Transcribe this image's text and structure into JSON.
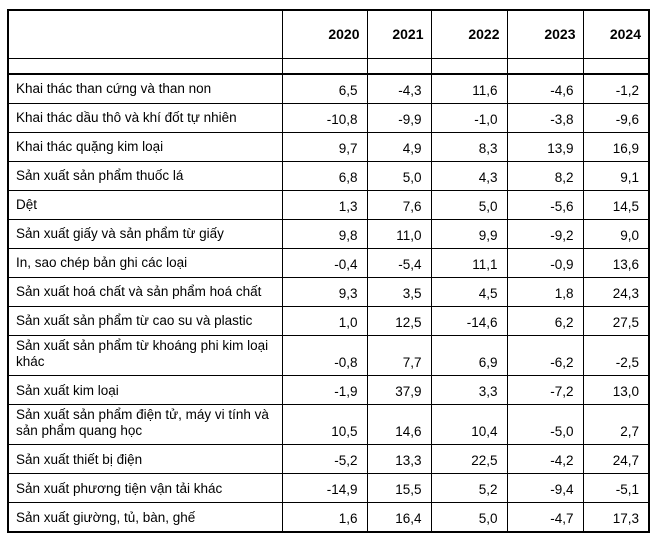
{
  "table": {
    "columns": [
      "2020",
      "2021",
      "2022",
      "2023",
      "2024"
    ],
    "rows": [
      {
        "label": "Khai thác than cứng và than non",
        "values": [
          "6,5",
          "-4,3",
          "11,6",
          "-4,6",
          "-1,2"
        ]
      },
      {
        "label": "Khai thác dầu thô và khí đốt tự nhiên",
        "values": [
          "-10,8",
          "-9,9",
          "-1,0",
          "-3,8",
          "-9,6"
        ]
      },
      {
        "label": "Khai thác quặng kim loại",
        "values": [
          "9,7",
          "4,9",
          "8,3",
          "13,9",
          "16,9"
        ]
      },
      {
        "label": "Sản xuất sản phẩm thuốc lá",
        "values": [
          "6,8",
          "5,0",
          "4,3",
          "8,2",
          "9,1"
        ]
      },
      {
        "label": "Dệt",
        "values": [
          "1,3",
          "7,6",
          "5,0",
          "-5,6",
          "14,5"
        ]
      },
      {
        "label": "Sản xuất giấy và sản phẩm từ giấy",
        "values": [
          "9,8",
          "11,0",
          "9,9",
          "-9,2",
          "9,0"
        ]
      },
      {
        "label": "In, sao chép bản ghi các loại",
        "values": [
          "-0,4",
          "-5,4",
          "11,1",
          "-0,9",
          "13,6"
        ]
      },
      {
        "label": "Sản xuất hoá chất và sản phẩm hoá chất",
        "values": [
          "9,3",
          "3,5",
          "4,5",
          "1,8",
          "24,3"
        ]
      },
      {
        "label": "Sản xuất sản phẩm từ cao su và plastic",
        "values": [
          "1,0",
          "12,5",
          "-14,6",
          "6,2",
          "27,5"
        ]
      },
      {
        "label": "Sản xuất sản phẩm từ khoáng phi kim loại khác",
        "values": [
          "-0,8",
          "7,7",
          "6,9",
          "-6,2",
          "-2,5"
        ]
      },
      {
        "label": "Sản xuất kim loại",
        "values": [
          "-1,9",
          "37,9",
          "3,3",
          "-7,2",
          "13,0"
        ]
      },
      {
        "label": "Sản xuất sản phẩm điện tử, máy vi tính và sản phẩm quang học",
        "values": [
          "10,5",
          "14,6",
          "10,4",
          "-5,0",
          "2,7"
        ]
      },
      {
        "label": "Sản xuất thiết bị điện",
        "values": [
          "-5,2",
          "13,3",
          "22,5",
          "-4,2",
          "24,7"
        ]
      },
      {
        "label": "Sản xuất phương tiện vận tải khác",
        "values": [
          "-14,9",
          "15,5",
          "5,2",
          "-9,4",
          "-5,1"
        ]
      },
      {
        "label": "Sản xuất giường, tủ, bàn, ghế",
        "values": [
          "1,6",
          "16,4",
          "5,0",
          "-4,7",
          "17,3"
        ]
      }
    ]
  },
  "chart_data": {
    "type": "table",
    "categories": [
      "Khai thác than cứng và than non",
      "Khai thác dầu thô và khí đốt tự nhiên",
      "Khai thác quặng kim loại",
      "Sản xuất sản phẩm thuốc lá",
      "Dệt",
      "Sản xuất giấy và sản phẩm từ giấy",
      "In, sao chép bản ghi các loại",
      "Sản xuất hoá chất và sản phẩm hoá chất",
      "Sản xuất sản phẩm từ cao su và plastic",
      "Sản xuất sản phẩm từ khoáng phi kim loại khác",
      "Sản xuất kim loại",
      "Sản xuất sản phẩm điện tử, máy vi tính và sản phẩm quang học",
      "Sản xuất thiết bị điện",
      "Sản xuất phương tiện vận tải khác",
      "Sản xuất giường, tủ, bàn, ghế"
    ],
    "series": [
      {
        "name": "2020",
        "values": [
          6.5,
          -10.8,
          9.7,
          6.8,
          1.3,
          9.8,
          -0.4,
          9.3,
          1.0,
          -0.8,
          -1.9,
          10.5,
          -5.2,
          -14.9,
          1.6
        ]
      },
      {
        "name": "2021",
        "values": [
          -4.3,
          -9.9,
          4.9,
          5.0,
          7.6,
          11.0,
          -5.4,
          3.5,
          12.5,
          7.7,
          37.9,
          14.6,
          13.3,
          15.5,
          16.4
        ]
      },
      {
        "name": "2022",
        "values": [
          11.6,
          -1.0,
          8.3,
          4.3,
          5.0,
          9.9,
          11.1,
          4.5,
          -14.6,
          6.9,
          3.3,
          10.4,
          22.5,
          5.2,
          5.0
        ]
      },
      {
        "name": "2023",
        "values": [
          -4.6,
          -3.8,
          13.9,
          8.2,
          -5.6,
          -9.2,
          -0.9,
          1.8,
          6.2,
          -6.2,
          -7.2,
          -5.0,
          -4.2,
          -9.4,
          -4.7
        ]
      },
      {
        "name": "2024",
        "values": [
          -1.2,
          -9.6,
          16.9,
          9.1,
          14.5,
          9.0,
          13.6,
          24.3,
          27.5,
          -2.5,
          13.0,
          2.7,
          24.7,
          -5.1,
          17.3
        ]
      }
    ],
    "title": "",
    "decimal_separator": ","
  },
  "colors": {
    "border": "#000000",
    "text": "#000000",
    "background": "#ffffff"
  }
}
